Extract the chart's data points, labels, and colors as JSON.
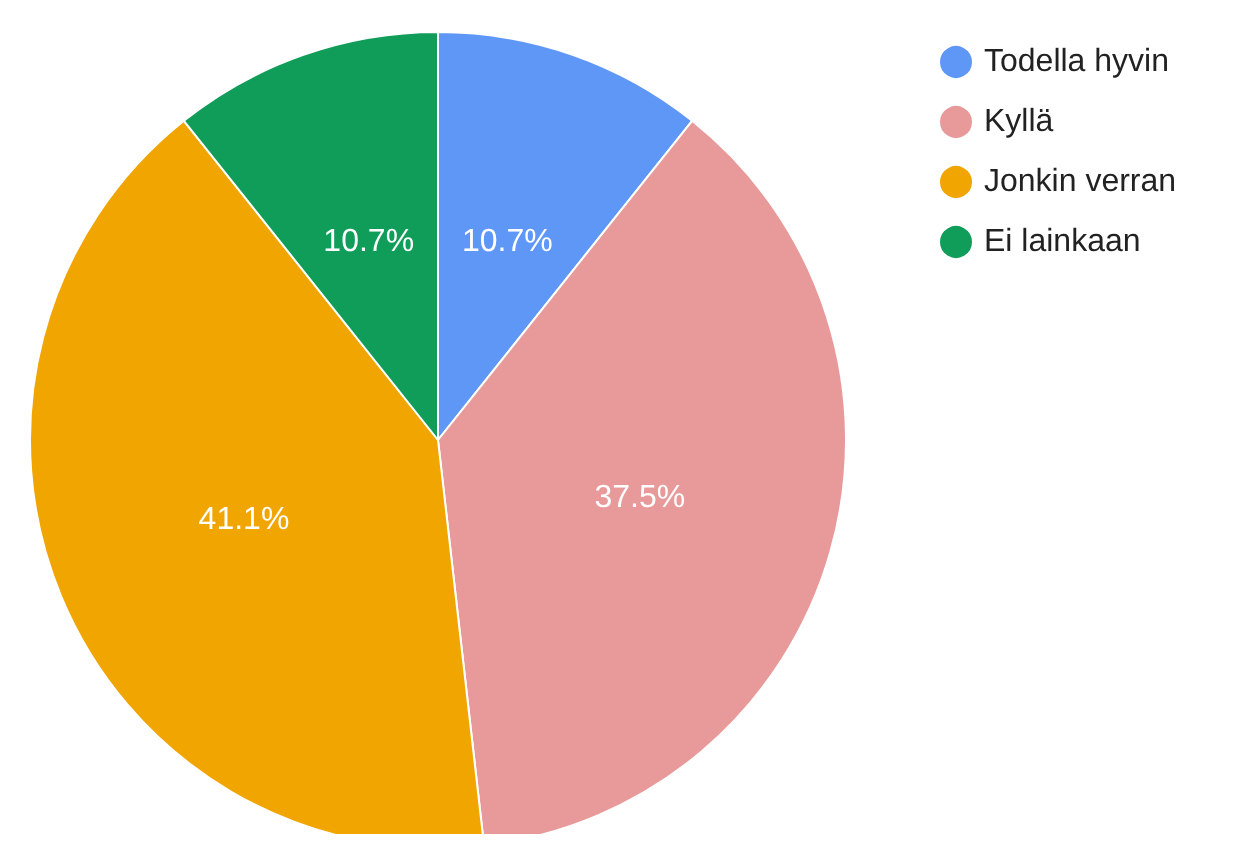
{
  "chart_data": {
    "type": "pie",
    "categories": [
      "Todella hyvin",
      "Kyllä",
      "Jonkin verran",
      "Ei lainkaan"
    ],
    "values": [
      10.7,
      37.5,
      41.1,
      10.7
    ],
    "colors": [
      "#5e97f6",
      "#e89a9a",
      "#f0a500",
      "#109d59"
    ],
    "value_labels": [
      "10.7%",
      "37.5%",
      "41.1%",
      "10.7%"
    ],
    "legend": "top right"
  }
}
